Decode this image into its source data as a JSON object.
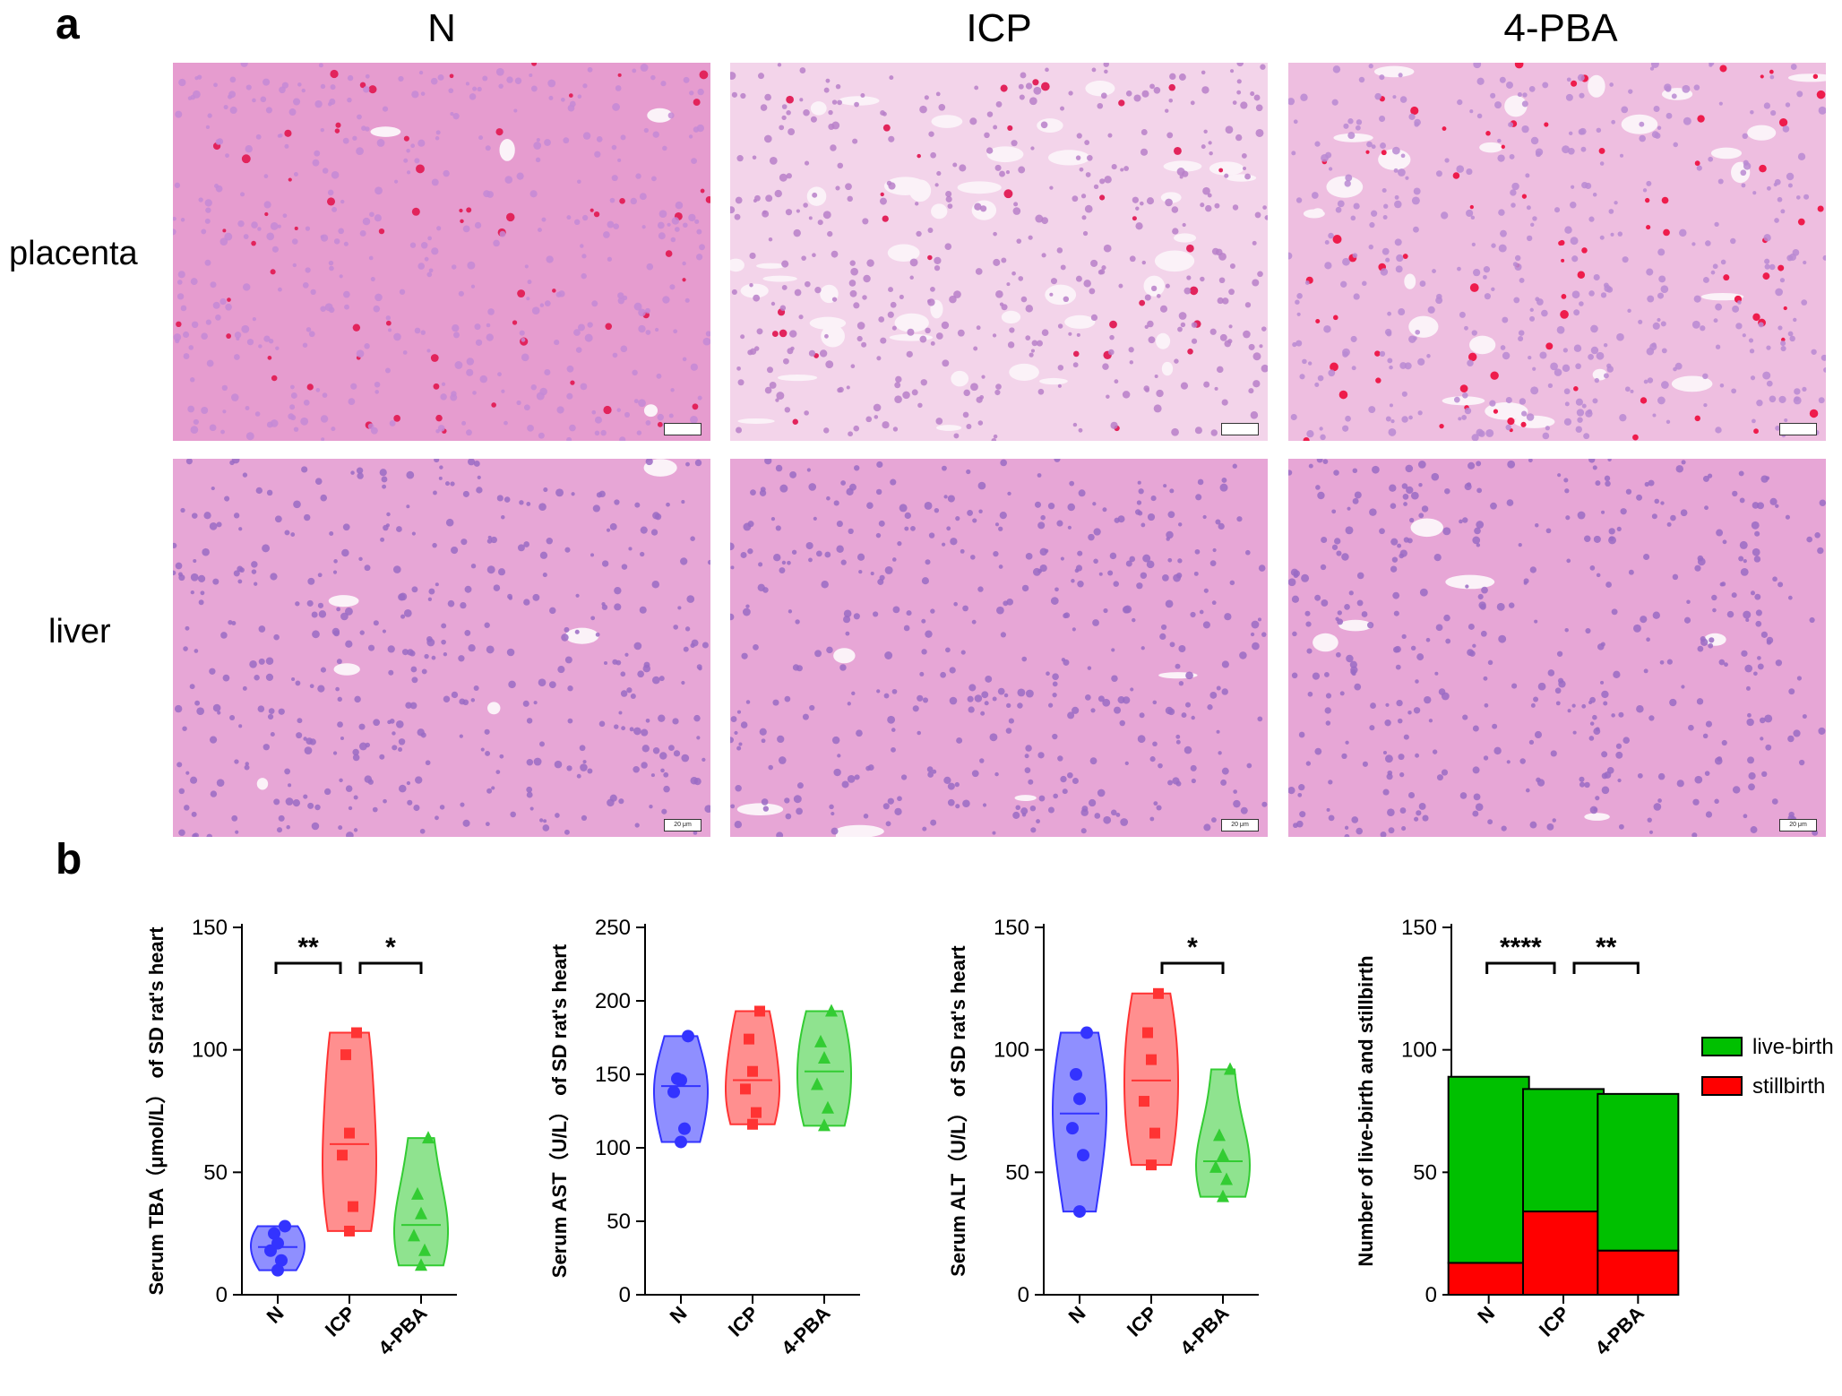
{
  "panel_a": {
    "letter": "a",
    "columns": [
      "N",
      "ICP",
      "4-PBA"
    ],
    "rows": [
      "placenta",
      "liver"
    ],
    "scale_bar_label": "20 μm"
  },
  "panel_b": {
    "letter": "b"
  },
  "chart_data": [
    {
      "type": "violin",
      "ylabel": "Serum TBA（μmol/L） of SD rat's  heart",
      "categories": [
        "N",
        "ICP",
        "4-PBA"
      ],
      "ylim": [
        0,
        150
      ],
      "yticks": [
        0,
        50,
        100,
        150
      ],
      "series": [
        {
          "name": "N",
          "color": "#3333ff",
          "marker": "circle",
          "values": [
            10,
            14,
            18,
            21,
            25,
            28
          ]
        },
        {
          "name": "ICP",
          "color": "#ff3333",
          "marker": "square",
          "values": [
            26,
            36,
            57,
            66,
            98,
            107
          ]
        },
        {
          "name": "4-PBA",
          "color": "#33cc33",
          "marker": "triangle",
          "values": [
            12,
            18,
            24,
            33,
            41,
            64
          ]
        }
      ],
      "significance": [
        {
          "from": "N",
          "to": "ICP",
          "label": "**"
        },
        {
          "from": "ICP",
          "to": "4-PBA",
          "label": "*"
        }
      ]
    },
    {
      "type": "violin",
      "ylabel": "Serum AST（U/L） of SD rat's  heart",
      "categories": [
        "N",
        "ICP",
        "4-PBA"
      ],
      "ylim": [
        0,
        250
      ],
      "yticks": [
        0,
        50,
        100,
        150,
        200,
        250
      ],
      "series": [
        {
          "name": "N",
          "color": "#3333ff",
          "marker": "circle",
          "values": [
            104,
            113,
            138,
            146,
            147,
            176
          ]
        },
        {
          "name": "ICP",
          "color": "#ff3333",
          "marker": "square",
          "values": [
            116,
            124,
            140,
            152,
            174,
            193
          ]
        },
        {
          "name": "4-PBA",
          "color": "#33cc33",
          "marker": "triangle",
          "values": [
            115,
            127,
            143,
            161,
            172,
            193
          ]
        }
      ],
      "significance": []
    },
    {
      "type": "violin",
      "ylabel": "Serum ALT（U/L） of SD rat's  heart",
      "categories": [
        "N",
        "ICP",
        "4-PBA"
      ],
      "ylim": [
        0,
        150
      ],
      "yticks": [
        0,
        50,
        100,
        150
      ],
      "series": [
        {
          "name": "N",
          "color": "#3333ff",
          "marker": "circle",
          "values": [
            34,
            57,
            68,
            80,
            90,
            107
          ]
        },
        {
          "name": "ICP",
          "color": "#ff3333",
          "marker": "square",
          "values": [
            53,
            66,
            79,
            96,
            107,
            123
          ]
        },
        {
          "name": "4-PBA",
          "color": "#33cc33",
          "marker": "triangle",
          "values": [
            40,
            47,
            52,
            57,
            65,
            92
          ]
        }
      ],
      "significance": [
        {
          "from": "ICP",
          "to": "4-PBA",
          "label": "*"
        }
      ]
    },
    {
      "type": "stacked-bar",
      "ylabel": "Number of  live-birth and stillbirth",
      "categories": [
        "N",
        "ICP",
        "4-PBA"
      ],
      "ylim": [
        0,
        150
      ],
      "yticks": [
        0,
        50,
        100,
        150
      ],
      "series": [
        {
          "name": "stillbirth",
          "color": "#ff0000",
          "values": [
            13,
            34,
            18
          ]
        },
        {
          "name": "live-birth",
          "color": "#00c000",
          "values": [
            76,
            50,
            64
          ]
        }
      ],
      "legend": [
        "live-birth",
        "stillbirth"
      ],
      "legend_position": "right",
      "significance": [
        {
          "from": "N",
          "to": "ICP",
          "label": "****"
        },
        {
          "from": "ICP",
          "to": "4-PBA",
          "label": "**"
        }
      ]
    }
  ]
}
